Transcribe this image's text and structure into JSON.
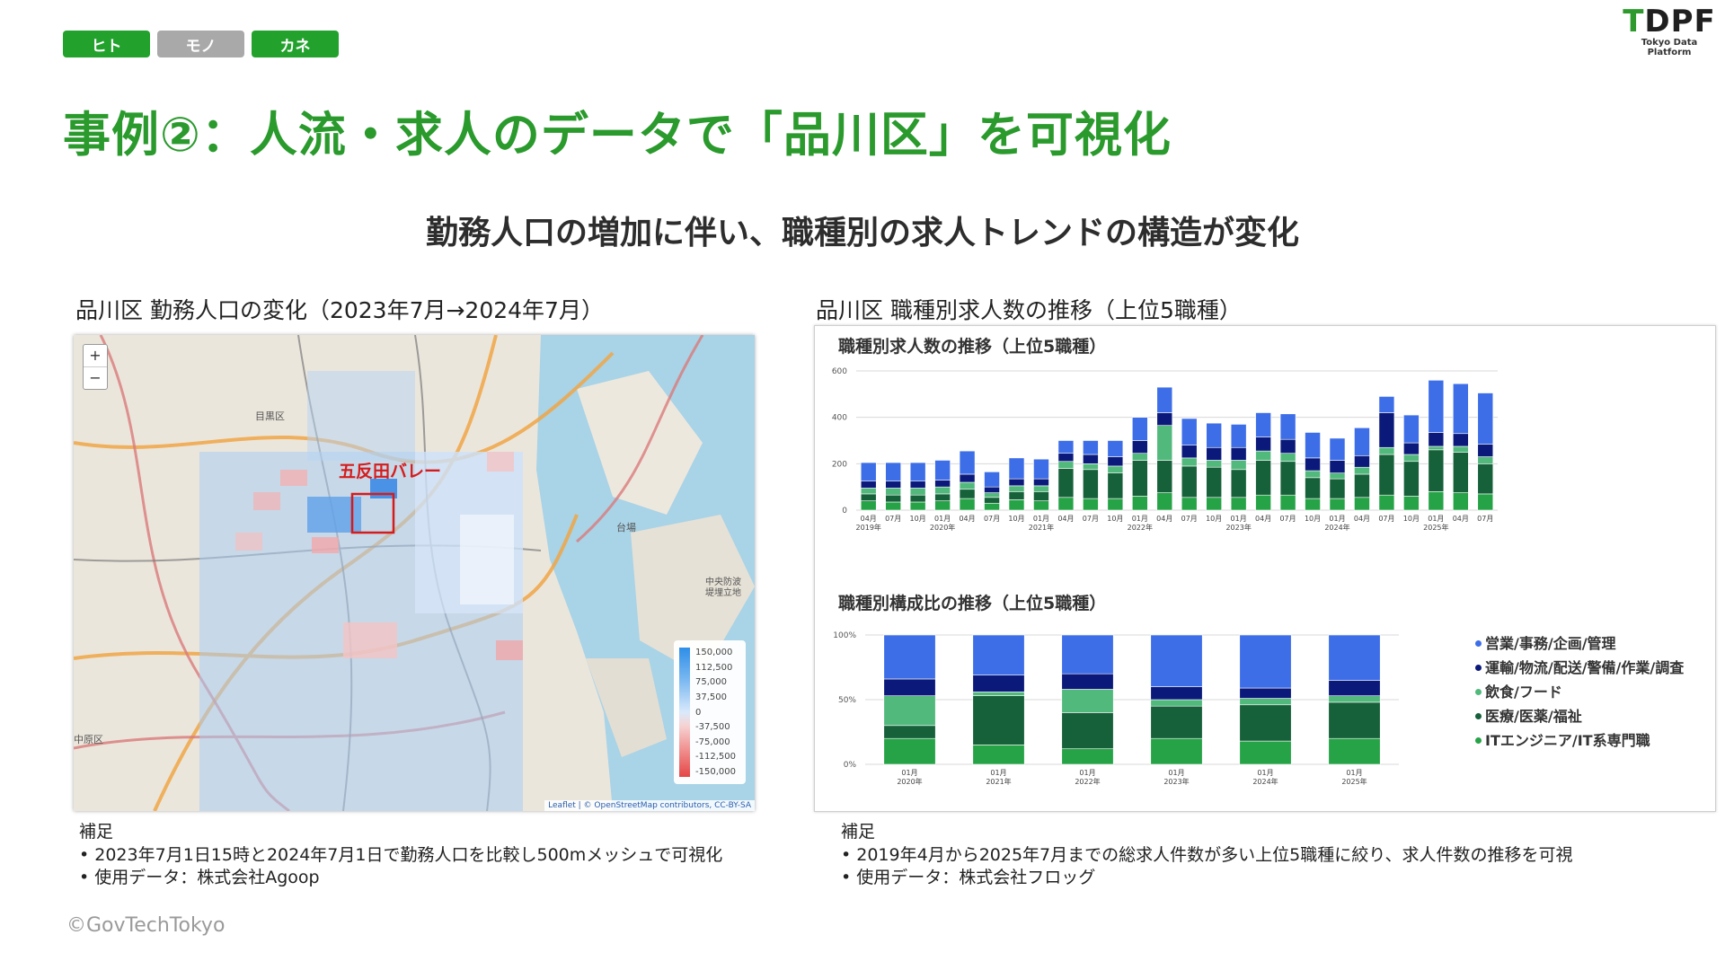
{
  "tags": [
    "ヒト",
    "モノ",
    "カネ"
  ],
  "logo": {
    "main_t": "T",
    "main_rest": "DPF",
    "sub": "Tokyo Data Platform"
  },
  "title": "事例②：人流・求人のデータで「品川区」を可視化",
  "subtitle": "勤務人口の増加に伴い、職種別の求人トレンドの構造が変化",
  "left": {
    "heading": "品川区 勤務人口の変化（2023年7月→2024年7月）",
    "map": {
      "zoom_in": "+",
      "zoom_out": "−",
      "highlight_label": "五反田バレー",
      "place_labels": [
        "目黒区",
        "台場",
        "中央防波堤埋立地",
        "中原区"
      ],
      "legend": [
        "150,000",
        "112,500",
        "75,000",
        "37,500",
        "0",
        "-37,500",
        "-75,000",
        "-112,500",
        "-150,000"
      ],
      "attribution": "Leaflet | © OpenStreetMap contributors, CC-BY-SA"
    },
    "notes": {
      "heading": "補足",
      "items": [
        "2023年7月1日15時と2024年7月1日で勤務人口を比較し500mメッシュで可視化",
        "使用データ：株式会社Agoop"
      ]
    }
  },
  "right": {
    "heading": "品川区 職種別求人数の推移（上位5職種）",
    "chart1_title": "職種別求人数の推移（上位5職種）",
    "chart2_title": "職種別構成比の推移（上位5職種）",
    "legend": [
      {
        "name": "営業/事務/企画/管理",
        "color": "#3d6ee8"
      },
      {
        "name": "運輸/物流/配送/警備/作業/調査",
        "color": "#0b1a7a"
      },
      {
        "name": "飲食/フード",
        "color": "#52b97c"
      },
      {
        "name": "医療/医薬/福祉",
        "color": "#16603a"
      },
      {
        "name": "ITエンジニア/IT系専門職",
        "color": "#27a347"
      }
    ],
    "notes": {
      "heading": "補足",
      "items": [
        "2019年4月から2025年7月までの総求人件数が多い上位5職種に絞り、求人件数の推移を可視",
        "使用データ：株式会社フロッグ"
      ]
    }
  },
  "chart_data": [
    {
      "type": "bar",
      "stacked": true,
      "title": "職種別求人数の推移（上位5職種）",
      "ylim": [
        0,
        600
      ],
      "yticks": [
        "0",
        "200",
        "400",
        "600"
      ],
      "categories": [
        "04月 2019年",
        "07月",
        "10月",
        "01月 2020年",
        "04月",
        "07月",
        "10月",
        "01月 2021年",
        "04月",
        "07月",
        "10月",
        "01月 2022年",
        "04月",
        "07月",
        "10月",
        "01月 2023年",
        "04月",
        "07月",
        "10月",
        "01月 2024年",
        "04月",
        "07月",
        "10月",
        "01月 2025年",
        "04月",
        "07月"
      ],
      "series": [
        {
          "name": "ITエンジニア/IT系専門職",
          "values": [
            40,
            35,
            35,
            40,
            50,
            30,
            45,
            40,
            55,
            50,
            50,
            60,
            75,
            55,
            55,
            55,
            65,
            65,
            50,
            50,
            55,
            65,
            60,
            80,
            75,
            70
          ]
        },
        {
          "name": "医療/医薬/福祉",
          "values": [
            30,
            30,
            30,
            30,
            40,
            25,
            35,
            40,
            125,
            125,
            110,
            155,
            140,
            135,
            130,
            120,
            150,
            145,
            90,
            85,
            100,
            175,
            150,
            180,
            175,
            130
          ]
        },
        {
          "name": "飲食/フード",
          "values": [
            25,
            30,
            30,
            30,
            30,
            20,
            25,
            25,
            30,
            25,
            30,
            30,
            150,
            35,
            30,
            40,
            40,
            35,
            30,
            25,
            30,
            30,
            30,
            15,
            25,
            30
          ]
        },
        {
          "name": "運輸/物流/配送/警備/作業/調査",
          "values": [
            30,
            30,
            30,
            30,
            35,
            25,
            30,
            30,
            35,
            40,
            40,
            55,
            55,
            55,
            55,
            55,
            60,
            60,
            55,
            55,
            50,
            150,
            50,
            60,
            55,
            55
          ]
        },
        {
          "name": "営業/事務/企画/管理",
          "values": [
            80,
            80,
            80,
            85,
            100,
            65,
            90,
            85,
            55,
            60,
            70,
            100,
            110,
            115,
            105,
            100,
            105,
            110,
            110,
            95,
            120,
            70,
            120,
            225,
            215,
            220
          ]
        }
      ]
    },
    {
      "type": "bar",
      "stacked": true,
      "title": "職種別構成比の推移（上位5職種）",
      "ylim": [
        0,
        100
      ],
      "yticks": [
        "0%",
        "50%",
        "100%"
      ],
      "categories": [
        "01月 2020年",
        "01月 2021年",
        "01月 2022年",
        "01月 2023年",
        "01月 2024年",
        "01月 2025年"
      ],
      "series": [
        {
          "name": "ITエンジニア/IT系専門職",
          "values": [
            20,
            15,
            12,
            20,
            18,
            20
          ]
        },
        {
          "name": "医療/医薬/福祉",
          "values": [
            10,
            38,
            28,
            25,
            28,
            28
          ]
        },
        {
          "name": "飲食/フード",
          "values": [
            23,
            3,
            18,
            5,
            5,
            5
          ]
        },
        {
          "name": "運輸/物流/配送/警備/作業/調査",
          "values": [
            13,
            13,
            12,
            10,
            8,
            12
          ]
        },
        {
          "name": "営業/事務/企画/管理",
          "values": [
            34,
            31,
            30,
            40,
            41,
            35
          ]
        }
      ]
    }
  ],
  "copyright": "©GovTechTokyo"
}
